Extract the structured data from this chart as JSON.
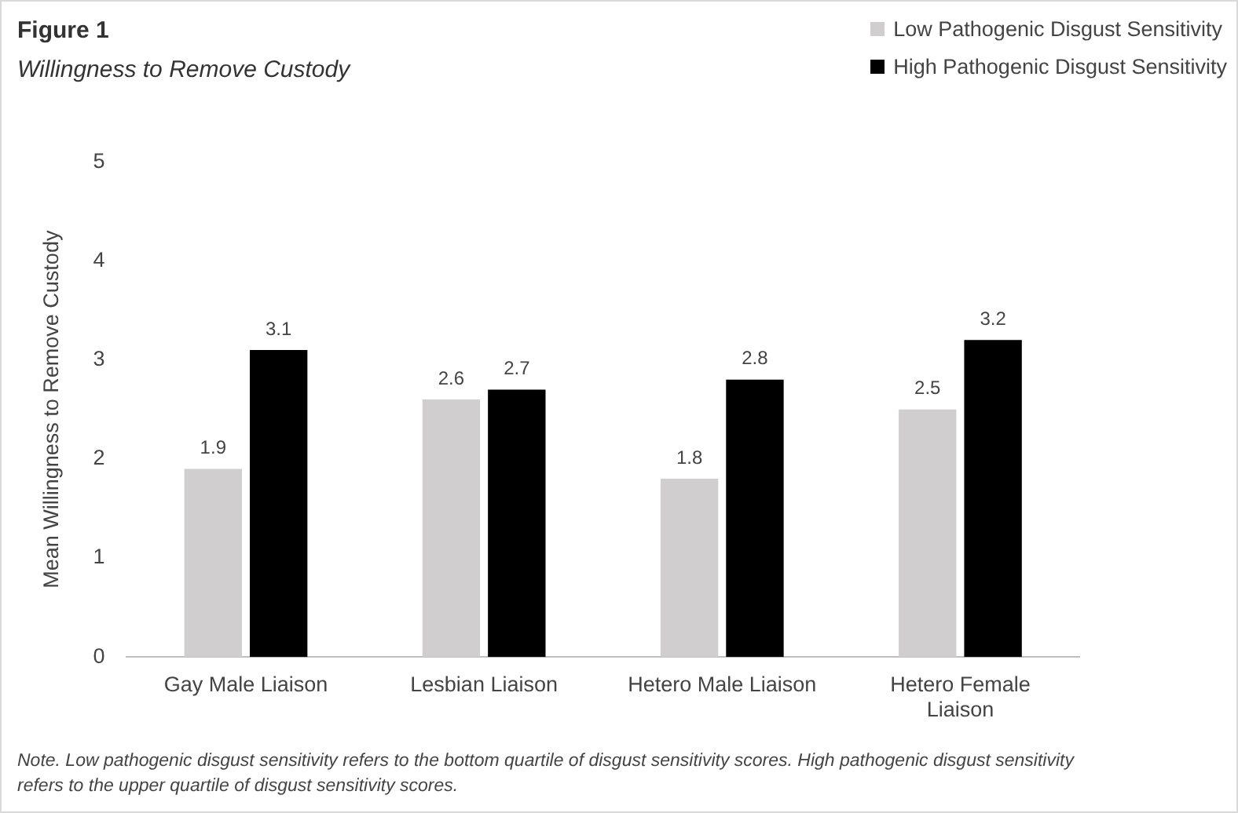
{
  "chart_data": {
    "type": "bar",
    "title": "Figure 1",
    "subtitle": "Willingness to Remove Custody",
    "ylabel": "Mean Willingness to Remove Custody",
    "categories": [
      "Gay Male Liaison",
      "Lesbian Liaison",
      "Hetero Male Liaison",
      "Hetero Female Liaison"
    ],
    "series": [
      {
        "name": "Low Pathogenic Disgust Sensitivity",
        "color": "#d0cece",
        "values": [
          1.9,
          2.6,
          1.8,
          2.5
        ]
      },
      {
        "name": "High Pathogenic Disgust Sensitivity",
        "color": "#000000",
        "values": [
          3.1,
          2.7,
          2.8,
          3.2
        ]
      }
    ],
    "ylim": [
      0,
      5
    ],
    "yticks": [
      0,
      1,
      2,
      3,
      4,
      5
    ],
    "grid": false,
    "legend": "top right",
    "data_labels": true,
    "annotations": [
      "Note. Low pathogenic disgust sensitivity refers to the bottom quartile of disgust sensitivity scores. High pathogenic disgust sensitivity refers to the upper quartile of disgust sensitivity scores."
    ]
  }
}
